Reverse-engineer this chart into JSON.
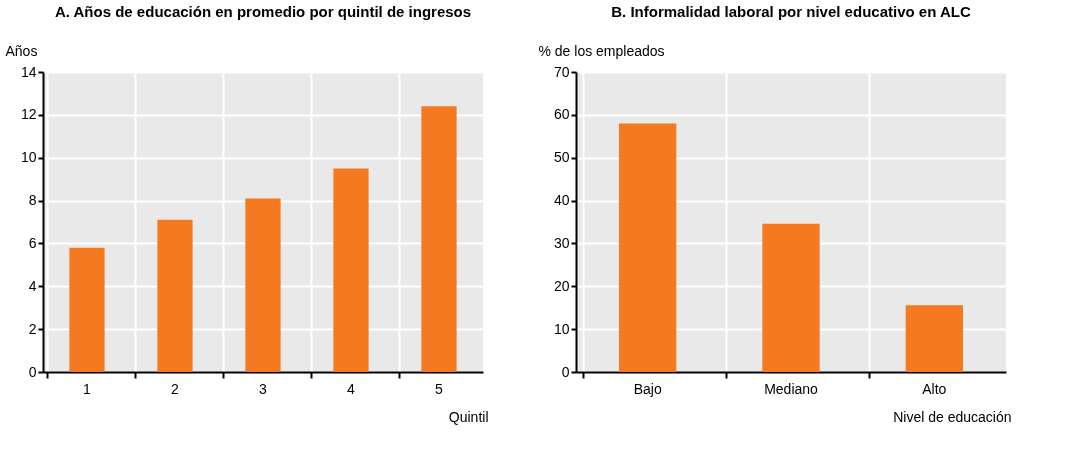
{
  "chart_data": [
    {
      "type": "bar",
      "title": "A. Años de educación en promedio por quintil de ingresos",
      "ylabel": "Años",
      "xlabel": "Quintil",
      "categories": [
        "1",
        "2",
        "3",
        "4",
        "5"
      ],
      "values": [
        5.8,
        7.1,
        8.1,
        9.5,
        12.4
      ],
      "color": "#f47920",
      "ylim": [
        0,
        14
      ],
      "yticks": [
        0,
        2,
        4,
        6,
        8,
        10,
        12,
        14
      ],
      "grid": true
    },
    {
      "type": "bar",
      "title": "B. Informalidad laboral por nivel educativo en ALC",
      "ylabel": "% de los empleados",
      "xlabel": "Nivel de educación",
      "categories": [
        "Bajo",
        "Mediano",
        "Alto"
      ],
      "values": [
        58,
        34.6,
        15.6
      ],
      "color": "#f47920",
      "ylim": [
        0,
        70
      ],
      "yticks": [
        0,
        10,
        20,
        30,
        40,
        50,
        60,
        70
      ],
      "grid": true
    }
  ]
}
